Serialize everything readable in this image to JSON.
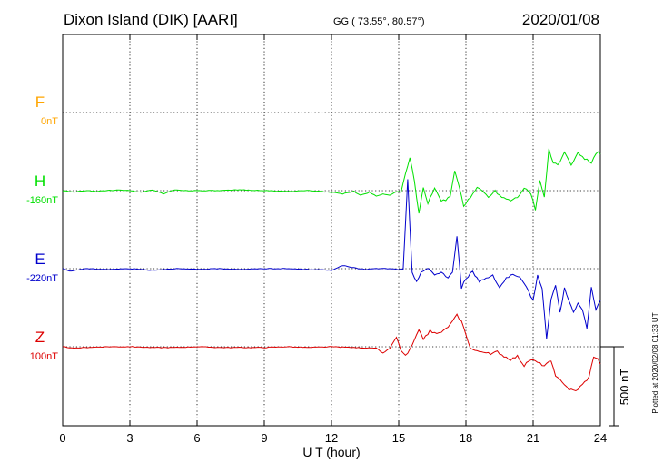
{
  "header": {
    "station": "Dixon Island (DIK)  [AARI]",
    "coords": "GG ( 73.55°,  80.57°)",
    "date": "2020/01/08"
  },
  "plotted_note": "Plotted at 2020/02/08 01:33 UT",
  "colors": {
    "F": "#ffa500",
    "H": "#00e000",
    "E": "#0000cc",
    "Z": "#dd0000"
  },
  "chart_data": {
    "type": "line",
    "xlabel": "U T (hour)",
    "xlim": [
      0,
      24
    ],
    "x_ticks": [
      0,
      3,
      6,
      9,
      12,
      15,
      18,
      21,
      24
    ],
    "scale_bar": {
      "label": "500 nT",
      "value": 500
    },
    "components": [
      {
        "name": "F",
        "baseline": "0nT",
        "color_key": "F",
        "points": []
      },
      {
        "name": "H",
        "baseline": "-160nT",
        "color_key": "H",
        "points": [
          [
            0,
            0
          ],
          [
            0.5,
            -10
          ],
          [
            1,
            0
          ],
          [
            1.5,
            -5
          ],
          [
            2,
            0
          ],
          [
            2.5,
            5
          ],
          [
            3,
            0
          ],
          [
            3.5,
            -10
          ],
          [
            4,
            5
          ],
          [
            4.5,
            -20
          ],
          [
            5,
            5
          ],
          [
            5.5,
            0
          ],
          [
            6,
            0
          ],
          [
            7,
            0
          ],
          [
            8,
            5
          ],
          [
            9,
            0
          ],
          [
            10,
            -5
          ],
          [
            11,
            0
          ],
          [
            12,
            -10
          ],
          [
            12.5,
            -20
          ],
          [
            13,
            -5
          ],
          [
            13.3,
            -30
          ],
          [
            13.7,
            -10
          ],
          [
            14,
            -35
          ],
          [
            14.3,
            -20
          ],
          [
            14.6,
            -30
          ],
          [
            14.9,
            -5
          ],
          [
            15.1,
            -10
          ],
          [
            15.3,
            100
          ],
          [
            15.5,
            210
          ],
          [
            15.7,
            60
          ],
          [
            15.9,
            -140
          ],
          [
            16.1,
            20
          ],
          [
            16.3,
            -80
          ],
          [
            16.6,
            10
          ],
          [
            16.9,
            -60
          ],
          [
            17.1,
            -60
          ],
          [
            17.3,
            -40
          ],
          [
            17.5,
            130
          ],
          [
            17.7,
            20
          ],
          [
            17.9,
            -100
          ],
          [
            18.2,
            -40
          ],
          [
            18.5,
            20
          ],
          [
            18.8,
            -10
          ],
          [
            19,
            -40
          ],
          [
            19.3,
            0
          ],
          [
            19.6,
            -40
          ],
          [
            20,
            -60
          ],
          [
            20.3,
            -40
          ],
          [
            20.6,
            20
          ],
          [
            20.9,
            -20
          ],
          [
            21.1,
            -120
          ],
          [
            21.3,
            60
          ],
          [
            21.5,
            -40
          ],
          [
            21.7,
            260
          ],
          [
            21.9,
            180
          ],
          [
            22.1,
            160
          ],
          [
            22.4,
            240
          ],
          [
            22.7,
            160
          ],
          [
            23,
            240
          ],
          [
            23.3,
            200
          ],
          [
            23.6,
            180
          ],
          [
            23.9,
            250
          ],
          [
            24,
            230
          ]
        ]
      },
      {
        "name": "E",
        "baseline": "-220nT",
        "color_key": "E",
        "points": [
          [
            0,
            0
          ],
          [
            0.3,
            -15
          ],
          [
            0.6,
            -10
          ],
          [
            1,
            0
          ],
          [
            2,
            -5
          ],
          [
            3,
            0
          ],
          [
            3.5,
            -5
          ],
          [
            4,
            -10
          ],
          [
            5,
            0
          ],
          [
            6,
            -5
          ],
          [
            7,
            0
          ],
          [
            8,
            -5
          ],
          [
            9,
            0
          ],
          [
            10,
            0
          ],
          [
            11,
            -5
          ],
          [
            12,
            -10
          ],
          [
            12.5,
            20
          ],
          [
            13,
            5
          ],
          [
            13.5,
            -5
          ],
          [
            14,
            0
          ],
          [
            14.5,
            0
          ],
          [
            15,
            -5
          ],
          [
            15.2,
            -10
          ],
          [
            15.4,
            560
          ],
          [
            15.6,
            -30
          ],
          [
            15.8,
            -80
          ],
          [
            16,
            -20
          ],
          [
            16.3,
            0
          ],
          [
            16.6,
            -40
          ],
          [
            16.9,
            -20
          ],
          [
            17.2,
            -60
          ],
          [
            17.4,
            -20
          ],
          [
            17.6,
            200
          ],
          [
            17.8,
            -120
          ],
          [
            18,
            -60
          ],
          [
            18.3,
            -20
          ],
          [
            18.6,
            -80
          ],
          [
            18.9,
            -60
          ],
          [
            19.2,
            -40
          ],
          [
            19.5,
            -120
          ],
          [
            19.8,
            -60
          ],
          [
            20.1,
            -40
          ],
          [
            20.4,
            -60
          ],
          [
            20.7,
            -120
          ],
          [
            21,
            -200
          ],
          [
            21.2,
            -40
          ],
          [
            21.4,
            -120
          ],
          [
            21.6,
            -440
          ],
          [
            21.8,
            -200
          ],
          [
            22,
            -100
          ],
          [
            22.2,
            -280
          ],
          [
            22.4,
            -120
          ],
          [
            22.6,
            -200
          ],
          [
            22.8,
            -280
          ],
          [
            23,
            -220
          ],
          [
            23.2,
            -260
          ],
          [
            23.4,
            -380
          ],
          [
            23.6,
            -120
          ],
          [
            23.8,
            -260
          ],
          [
            24,
            -200
          ]
        ]
      },
      {
        "name": "Z",
        "baseline": "100nT",
        "color_key": "Z",
        "points": [
          [
            0,
            0
          ],
          [
            0.5,
            -10
          ],
          [
            1,
            -5
          ],
          [
            2,
            0
          ],
          [
            3,
            0
          ],
          [
            4,
            -5
          ],
          [
            5,
            -5
          ],
          [
            6,
            0
          ],
          [
            7,
            -5
          ],
          [
            8,
            -5
          ],
          [
            9,
            -5
          ],
          [
            10,
            0
          ],
          [
            11,
            -5
          ],
          [
            12,
            0
          ],
          [
            13,
            -5
          ],
          [
            14,
            -10
          ],
          [
            14.3,
            -40
          ],
          [
            14.6,
            -10
          ],
          [
            14.9,
            60
          ],
          [
            15.1,
            -20
          ],
          [
            15.3,
            -60
          ],
          [
            15.5,
            -20
          ],
          [
            15.7,
            40
          ],
          [
            15.9,
            100
          ],
          [
            16.1,
            50
          ],
          [
            16.4,
            100
          ],
          [
            16.7,
            80
          ],
          [
            17,
            100
          ],
          [
            17.3,
            140
          ],
          [
            17.6,
            200
          ],
          [
            17.8,
            160
          ],
          [
            18,
            80
          ],
          [
            18.2,
            -10
          ],
          [
            18.5,
            -30
          ],
          [
            18.8,
            -30
          ],
          [
            19.1,
            -50
          ],
          [
            19.4,
            -30
          ],
          [
            19.7,
            -60
          ],
          [
            20,
            -80
          ],
          [
            20.3,
            -60
          ],
          [
            20.6,
            -120
          ],
          [
            20.9,
            -80
          ],
          [
            21.2,
            -100
          ],
          [
            21.5,
            -120
          ],
          [
            21.8,
            -90
          ],
          [
            22,
            -190
          ],
          [
            22.3,
            -220
          ],
          [
            22.6,
            -270
          ],
          [
            22.9,
            -280
          ],
          [
            23.2,
            -240
          ],
          [
            23.5,
            -190
          ],
          [
            23.7,
            -60
          ],
          [
            23.9,
            -80
          ],
          [
            24,
            -110
          ]
        ]
      }
    ]
  }
}
